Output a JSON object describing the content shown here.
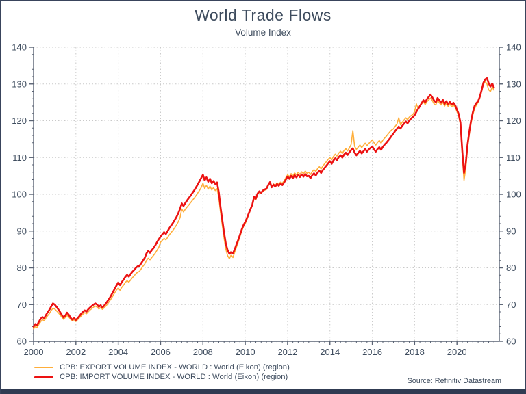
{
  "header": {
    "title": "World Trade Flows",
    "subtitle": "Volume Index"
  },
  "legend": [
    {
      "label": "CPB: EXPORT VOLUME INDEX - WORLD : World (Eikon) (region)",
      "color": "#FFAE3A",
      "thickness": 2
    },
    {
      "label": "CPB: IMPORT VOLUME INDEX - WORLD : World (Eikon) (region)",
      "color": "#EC1212",
      "thickness": 3.5
    }
  ],
  "source": "Source: Refinitiv Datastream",
  "colors": {
    "text": "#3e4c5e",
    "axis": "#596273",
    "grid": "#c9c9c9",
    "export_line": "#FFAE3A",
    "import_line": "#EC1212",
    "frame_bar": "#303b52"
  },
  "chart_data": {
    "type": "line",
    "title": "World Trade Flows",
    "subtitle": "Volume Index",
    "xlabel": "",
    "ylabel": "",
    "x_start": 2000.0,
    "x_step": 0.083333,
    "x_range": [
      2000,
      2022
    ],
    "ylim": [
      60,
      140
    ],
    "y_ticks": [
      60,
      70,
      80,
      90,
      100,
      110,
      120,
      130,
      140
    ],
    "y_minor_step": 2,
    "x_ticks": [
      2000,
      2002,
      2004,
      2006,
      2008,
      2010,
      2012,
      2014,
      2016,
      2018,
      2020
    ],
    "x_minor_step": 0.25,
    "grid": true,
    "legend_position": "bottom-left",
    "series": [
      {
        "name": "CPB: EXPORT VOLUME INDEX - WORLD : World (Eikon) (region)",
        "color": "#FFAE3A",
        "width": 1.6,
        "values": [
          63.4,
          64.0,
          63.8,
          64.6,
          65.3,
          65.9,
          65.6,
          66.3,
          67.0,
          67.6,
          68.4,
          69.0,
          68.8,
          68.3,
          67.8,
          67.2,
          66.6,
          66.0,
          66.5,
          67.1,
          66.6,
          66.0,
          65.6,
          65.9,
          65.4,
          65.9,
          66.4,
          66.9,
          67.4,
          67.8,
          67.5,
          68.0,
          68.5,
          68.9,
          69.3,
          69.6,
          69.3,
          68.8,
          69.2,
          68.7,
          69.1,
          69.6,
          70.2,
          70.9,
          71.6,
          72.4,
          73.2,
          74.0,
          74.5,
          73.9,
          74.7,
          75.3,
          76.0,
          76.5,
          76.1,
          76.7,
          77.3,
          77.8,
          78.4,
          78.8,
          79.0,
          79.7,
          80.4,
          81.0,
          82.0,
          82.6,
          82.2,
          82.8,
          83.4,
          84.0,
          84.8,
          85.6,
          87.0,
          87.5,
          88.0,
          87.6,
          88.3,
          89.0,
          89.6,
          90.2,
          90.9,
          91.6,
          92.5,
          93.6,
          96.0,
          95.2,
          95.9,
          96.5,
          97.1,
          97.7,
          98.3,
          98.9,
          99.6,
          100.3,
          101.0,
          101.8,
          103.0,
          101.6,
          102.4,
          101.4,
          102.2,
          101.2,
          101.8,
          101.0,
          101.5,
          99.0,
          95.0,
          91.5,
          88.0,
          85.0,
          83.3,
          82.5,
          83.5,
          82.8,
          84.2,
          85.6,
          87.0,
          88.5,
          90.0,
          91.2,
          92.0,
          93.2,
          94.5,
          95.8,
          97.0,
          99.0,
          98.5,
          100.0,
          100.5,
          100.2,
          100.8,
          101.1,
          101.3,
          102.3,
          103.0,
          101.8,
          102.8,
          102.4,
          103.1,
          102.7,
          103.3,
          103.0,
          103.7,
          104.5,
          105.3,
          104.8,
          105.6,
          105.0,
          105.8,
          105.3,
          106.0,
          105.4,
          106.1,
          105.6,
          106.3,
          105.7,
          106.0,
          105.4,
          106.2,
          106.7,
          106.2,
          107.0,
          107.5,
          106.9,
          107.7,
          108.3,
          108.9,
          109.5,
          110.0,
          109.4,
          110.3,
          110.9,
          110.4,
          111.2,
          111.7,
          111.1,
          111.9,
          112.4,
          111.8,
          112.6,
          113.5,
          117.3,
          113.0,
          112.2,
          112.8,
          113.4,
          112.7,
          113.3,
          113.9,
          113.2,
          113.8,
          114.3,
          114.8,
          114.0,
          113.4,
          114.1,
          114.6,
          113.9,
          114.7,
          115.3,
          115.8,
          116.4,
          117.0,
          117.5,
          117.8,
          118.5,
          119.1,
          120.8,
          118.9,
          119.6,
          120.2,
          120.8,
          120.3,
          121.0,
          121.4,
          121.7,
          122.5,
          124.6,
          123.2,
          123.9,
          124.7,
          125.1,
          124.4,
          125.2,
          125.7,
          126.2,
          125.5,
          124.6,
          124.3,
          125.5,
          124.9,
          124.3,
          125.0,
          124.0,
          124.7,
          123.9,
          124.5,
          123.8,
          124.3,
          123.6,
          122.5,
          121.2,
          118.8,
          110.5,
          103.8,
          107.0,
          112.5,
          116.2,
          119.3,
          121.6,
          123.3,
          124.2,
          125.0,
          126.3,
          128.0,
          129.9,
          130.7,
          130.0,
          128.4,
          127.9,
          129.2,
          128.3
        ]
      },
      {
        "name": "CPB: IMPORT VOLUME INDEX - WORLD : World (Eikon) (region)",
        "color": "#EC1212",
        "width": 2.6,
        "values": [
          64.0,
          64.7,
          64.4,
          65.3,
          66.1,
          66.6,
          66.3,
          67.1,
          67.9,
          68.6,
          69.5,
          70.3,
          70.0,
          69.4,
          68.7,
          68.0,
          67.2,
          66.5,
          67.0,
          67.8,
          67.2,
          66.4,
          65.9,
          66.3,
          65.8,
          66.3,
          66.9,
          67.5,
          68.0,
          68.4,
          68.1,
          68.7,
          69.2,
          69.6,
          70.0,
          70.3,
          70.0,
          69.4,
          69.8,
          69.2,
          69.7,
          70.3,
          71.0,
          71.7,
          72.5,
          73.4,
          74.3,
          75.2,
          76.0,
          75.3,
          76.1,
          76.8,
          77.5,
          78.1,
          77.6,
          78.3,
          78.9,
          79.4,
          80.0,
          80.4,
          80.5,
          81.2,
          82.0,
          82.7,
          83.9,
          84.6,
          84.1,
          84.8,
          85.4,
          86.1,
          87.0,
          87.8,
          88.5,
          89.1,
          89.7,
          89.2,
          90.0,
          90.8,
          91.5,
          92.2,
          93.0,
          93.8,
          94.8,
          96.0,
          97.5,
          96.8,
          97.6,
          98.3,
          99.0,
          99.6,
          100.3,
          101.0,
          101.8,
          102.6,
          103.5,
          104.4,
          105.3,
          103.8,
          104.6,
          103.4,
          104.2,
          103.0,
          103.6,
          102.8,
          103.2,
          100.5,
          96.5,
          93.0,
          89.5,
          86.5,
          84.8,
          83.8,
          84.3,
          83.9,
          85.0,
          86.3,
          87.6,
          89.0,
          90.4,
          91.6,
          92.5,
          93.6,
          94.8,
          96.0,
          97.2,
          99.3,
          98.8,
          100.2,
          100.8,
          100.4,
          101.0,
          101.3,
          101.5,
          102.5,
          103.3,
          101.9,
          102.6,
          102.1,
          102.8,
          102.3,
          102.9,
          102.5,
          103.2,
          104.0,
          104.8,
          104.2,
          105.0,
          104.4,
          105.2,
          104.6,
          105.3,
          104.7,
          105.4,
          104.8,
          105.5,
          104.9,
          105.0,
          104.4,
          105.2,
          105.7,
          105.1,
          105.9,
          106.4,
          105.8,
          106.6,
          107.2,
          107.8,
          108.4,
          109.0,
          108.3,
          109.2,
          109.8,
          109.3,
          110.1,
          110.6,
          110.0,
          110.8,
          111.3,
          110.7,
          111.4,
          112.0,
          112.5,
          111.3,
          110.6,
          111.2,
          111.8,
          111.1,
          111.7,
          112.3,
          111.6,
          112.2,
          112.6,
          113.0,
          112.2,
          111.6,
          112.3,
          112.8,
          112.1,
          112.9,
          113.5,
          114.0,
          114.6,
          115.2,
          115.9,
          116.5,
          117.2,
          117.8,
          118.4,
          117.9,
          118.6,
          119.2,
          119.8,
          119.3,
          120.0,
          120.6,
          121.0,
          121.5,
          122.4,
          123.2,
          124.0,
          124.8,
          125.6,
          125.0,
          125.9,
          126.5,
          127.1,
          126.4,
          125.5,
          125.0,
          126.2,
          125.6,
          124.9,
          125.7,
          124.6,
          125.3,
          124.5,
          125.1,
          124.4,
          124.9,
          124.2,
          123.0,
          121.8,
          119.5,
          112.0,
          105.8,
          108.5,
          113.5,
          117.0,
          120.0,
          122.3,
          124.0,
          124.8,
          125.3,
          126.6,
          128.3,
          130.3,
          131.3,
          131.6,
          130.2,
          129.3,
          130.1,
          129.0
        ]
      }
    ]
  }
}
